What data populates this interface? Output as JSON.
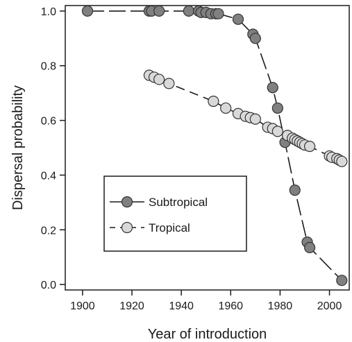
{
  "chart_data": {
    "type": "line",
    "title": "",
    "xlabel": "Year of introduction",
    "ylabel": "Dispersal probability",
    "xlim": [
      1893,
      2008
    ],
    "ylim": [
      -0.02,
      1.02
    ],
    "xticks": [
      "1900",
      "1920",
      "1940",
      "1960",
      "1980",
      "2000"
    ],
    "yticks": [
      "0.0",
      "0.2",
      "0.4",
      "0.6",
      "0.8",
      "1.0"
    ],
    "grid": false,
    "legend_position": "lower-left",
    "series": [
      {
        "name": "Subtropical",
        "line_style": "long-dash",
        "marker_fill": "#808080",
        "marker_edge": "#333333",
        "points": [
          [
            1902,
            1.0
          ],
          [
            1927,
            1.0
          ],
          [
            1928,
            1.0
          ],
          [
            1931,
            1.0
          ],
          [
            1943,
            1.0
          ],
          [
            1947,
            1.0
          ],
          [
            1948,
            0.995
          ],
          [
            1950,
            0.995
          ],
          [
            1952,
            0.99
          ],
          [
            1954,
            0.99
          ],
          [
            1955,
            0.99
          ],
          [
            1963,
            0.97
          ],
          [
            1969,
            0.915
          ],
          [
            1970,
            0.9
          ],
          [
            1977,
            0.72
          ],
          [
            1979,
            0.645
          ],
          [
            1982,
            0.52
          ],
          [
            1986,
            0.345
          ],
          [
            1991,
            0.155
          ],
          [
            1992,
            0.135
          ],
          [
            2005,
            0.015
          ]
        ]
      },
      {
        "name": "Tropical",
        "line_style": "short-dash",
        "marker_fill": "#d9d9d9",
        "marker_edge": "#333333",
        "points": [
          [
            1927,
            0.765
          ],
          [
            1929,
            0.758
          ],
          [
            1931,
            0.75
          ],
          [
            1935,
            0.735
          ],
          [
            1953,
            0.67
          ],
          [
            1958,
            0.645
          ],
          [
            1963,
            0.625
          ],
          [
            1966,
            0.615
          ],
          [
            1968,
            0.61
          ],
          [
            1970,
            0.605
          ],
          [
            1975,
            0.575
          ],
          [
            1977,
            0.57
          ],
          [
            1979,
            0.56
          ],
          [
            1983,
            0.545
          ],
          [
            1985,
            0.535
          ],
          [
            1986,
            0.53
          ],
          [
            1987,
            0.525
          ],
          [
            1988,
            0.52
          ],
          [
            1989,
            0.515
          ],
          [
            1990,
            0.51
          ],
          [
            1992,
            0.505
          ],
          [
            2000,
            0.47
          ],
          [
            2001,
            0.465
          ],
          [
            2003,
            0.46
          ],
          [
            2004,
            0.455
          ],
          [
            2005,
            0.45
          ]
        ]
      }
    ]
  }
}
